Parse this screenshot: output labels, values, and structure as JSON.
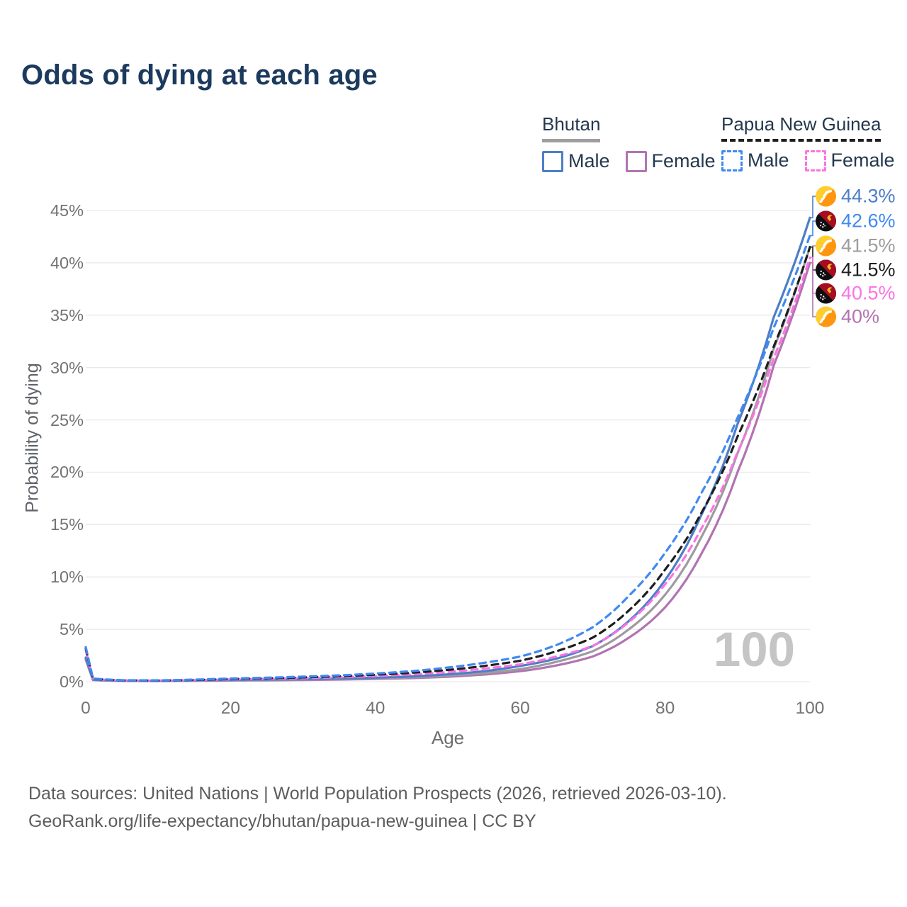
{
  "title": "Odds of dying at each age",
  "legend": {
    "groups": [
      {
        "name": "Bhutan",
        "line_style": "solid",
        "underline_color": "#9e9e9e",
        "items": [
          {
            "label": "Male",
            "color": "#4d7ec6",
            "dashed": false
          },
          {
            "label": "Female",
            "color": "#b273b1",
            "dashed": false
          }
        ]
      },
      {
        "name": "Papua New Guinea",
        "line_style": "dashed",
        "underline_color": "#1e1e1e",
        "items": [
          {
            "label": "Male",
            "color": "#4089f2",
            "dashed": true
          },
          {
            "label": "Female",
            "color": "#fb73e3",
            "dashed": true
          }
        ]
      }
    ]
  },
  "chart_data": {
    "type": "line",
    "title": "Odds of dying at each age",
    "xlabel": "Age",
    "ylabel": "Probability of dying",
    "xlim": [
      0,
      100
    ],
    "ylim_pct": [
      0,
      45
    ],
    "grid": "horizontal",
    "x_ticks": [
      0,
      20,
      40,
      60,
      80,
      100
    ],
    "y_ticks": [
      "0%",
      "5%",
      "10%",
      "15%",
      "20%",
      "25%",
      "30%",
      "35%",
      "40%",
      "45%"
    ],
    "watermark": "100",
    "ages": [
      0,
      1,
      5,
      10,
      15,
      20,
      25,
      30,
      35,
      40,
      45,
      50,
      55,
      60,
      65,
      70,
      75,
      80,
      85,
      90,
      95,
      100
    ],
    "series": [
      {
        "name": "Bhutan Male",
        "country": "Bhutan",
        "sex": "Male",
        "color": "#4d7ec6",
        "dashed": false,
        "flag": "bt",
        "end_label": "44.3%",
        "label_color": "#4d7ec6",
        "values": [
          2.3,
          0.2,
          0.09,
          0.08,
          0.12,
          0.17,
          0.2,
          0.24,
          0.3,
          0.38,
          0.5,
          0.7,
          1.0,
          1.5,
          2.2,
          3.4,
          5.8,
          9.7,
          15.9,
          24.6,
          34.8,
          44.3
        ]
      },
      {
        "name": "Papua New Guinea Male",
        "country": "Papua New Guinea",
        "sex": "Male",
        "color": "#4089f2",
        "dashed": true,
        "flag": "pg",
        "end_label": "42.6%",
        "label_color": "#4089f2",
        "values": [
          3.3,
          0.3,
          0.14,
          0.12,
          0.2,
          0.3,
          0.38,
          0.48,
          0.6,
          0.78,
          1.0,
          1.35,
          1.8,
          2.4,
          3.5,
          5.2,
          8.2,
          12.3,
          18.0,
          25.2,
          33.8,
          42.6
        ]
      },
      {
        "name": "Bhutan Both sexes",
        "country": "Bhutan",
        "sex": "Both",
        "color": "#9c9ca0",
        "dashed": false,
        "flag": "bt",
        "end_label": "41.5%",
        "label_color": "#9c9ca0",
        "values": [
          2.2,
          0.18,
          0.08,
          0.07,
          0.1,
          0.14,
          0.17,
          0.2,
          0.25,
          0.32,
          0.42,
          0.58,
          0.82,
          1.2,
          1.9,
          2.9,
          5.0,
          8.3,
          13.8,
          21.8,
          31.8,
          41.5
        ]
      },
      {
        "name": "Papua New Guinea Both sexes",
        "country": "Papua New Guinea",
        "sex": "Both",
        "color": "#1e1e1e",
        "dashed": true,
        "flag": "pg",
        "end_label": "41.5%",
        "label_color": "#1e1e1e",
        "values": [
          3.2,
          0.28,
          0.13,
          0.11,
          0.17,
          0.26,
          0.33,
          0.41,
          0.52,
          0.66,
          0.85,
          1.12,
          1.5,
          2.0,
          2.9,
          4.2,
          6.8,
          10.7,
          16.1,
          23.4,
          32.0,
          41.5
        ]
      },
      {
        "name": "Papua New Guinea Female",
        "country": "Papua New Guinea",
        "sex": "Female",
        "color": "#fb73e3",
        "dashed": true,
        "flag": "pg",
        "end_label": "40.5%",
        "label_color": "#fb73e3",
        "values": [
          3.0,
          0.26,
          0.12,
          0.1,
          0.15,
          0.22,
          0.27,
          0.33,
          0.42,
          0.54,
          0.7,
          0.92,
          1.25,
          1.65,
          2.4,
          3.4,
          5.7,
          9.3,
          14.6,
          21.9,
          30.9,
          40.5
        ]
      },
      {
        "name": "Bhutan Female",
        "country": "Bhutan",
        "sex": "Female",
        "color": "#b273b1",
        "dashed": false,
        "flag": "bt",
        "end_label": "40%",
        "label_color": "#b273b1",
        "values": [
          2.1,
          0.16,
          0.07,
          0.06,
          0.08,
          0.11,
          0.13,
          0.16,
          0.2,
          0.26,
          0.34,
          0.47,
          0.68,
          1.0,
          1.55,
          2.4,
          4.2,
          7.1,
          12.2,
          20.0,
          30.2,
          40.0
        ]
      }
    ]
  },
  "footer": {
    "line1": "Data sources: United Nations | World Population Prospects (2026, retrieved 2026-03-10).",
    "line2": "GeoRank.org/life-expectancy/bhutan/papua-new-guinea | CC BY"
  }
}
